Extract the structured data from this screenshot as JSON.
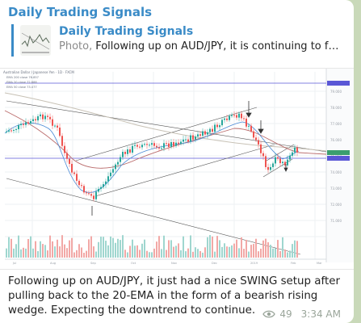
{
  "channel": {
    "name": "Daily Trading Signals"
  },
  "reply": {
    "name": "Daily Trading Signals",
    "prefix": "Photo,",
    "text": "Following up on AUD/JPY, it is continuing to fall du..."
  },
  "chart_header": {
    "line1": "Australian Dollar / Japanese Yen · 1D · FXCM",
    "line2": "EMA 200 close 76.857",
    "line3": "EMA 20 close 72.888",
    "line4": "EMA 50 close 73.477"
  },
  "caption": {
    "text": "Following up on AUD/JPY, it just had a nice SWING setup after pulling back to the 20-EMA in the form of a bearish rising wedge. Expecting the downtrend to continue."
  },
  "meta": {
    "views": "49",
    "time": "3:34 AM",
    "eye_icon": "eye-icon"
  },
  "colors": {
    "accent": "#3a8bc7",
    "background": "#c9d9b9",
    "price_label": "#5a57d6"
  }
}
